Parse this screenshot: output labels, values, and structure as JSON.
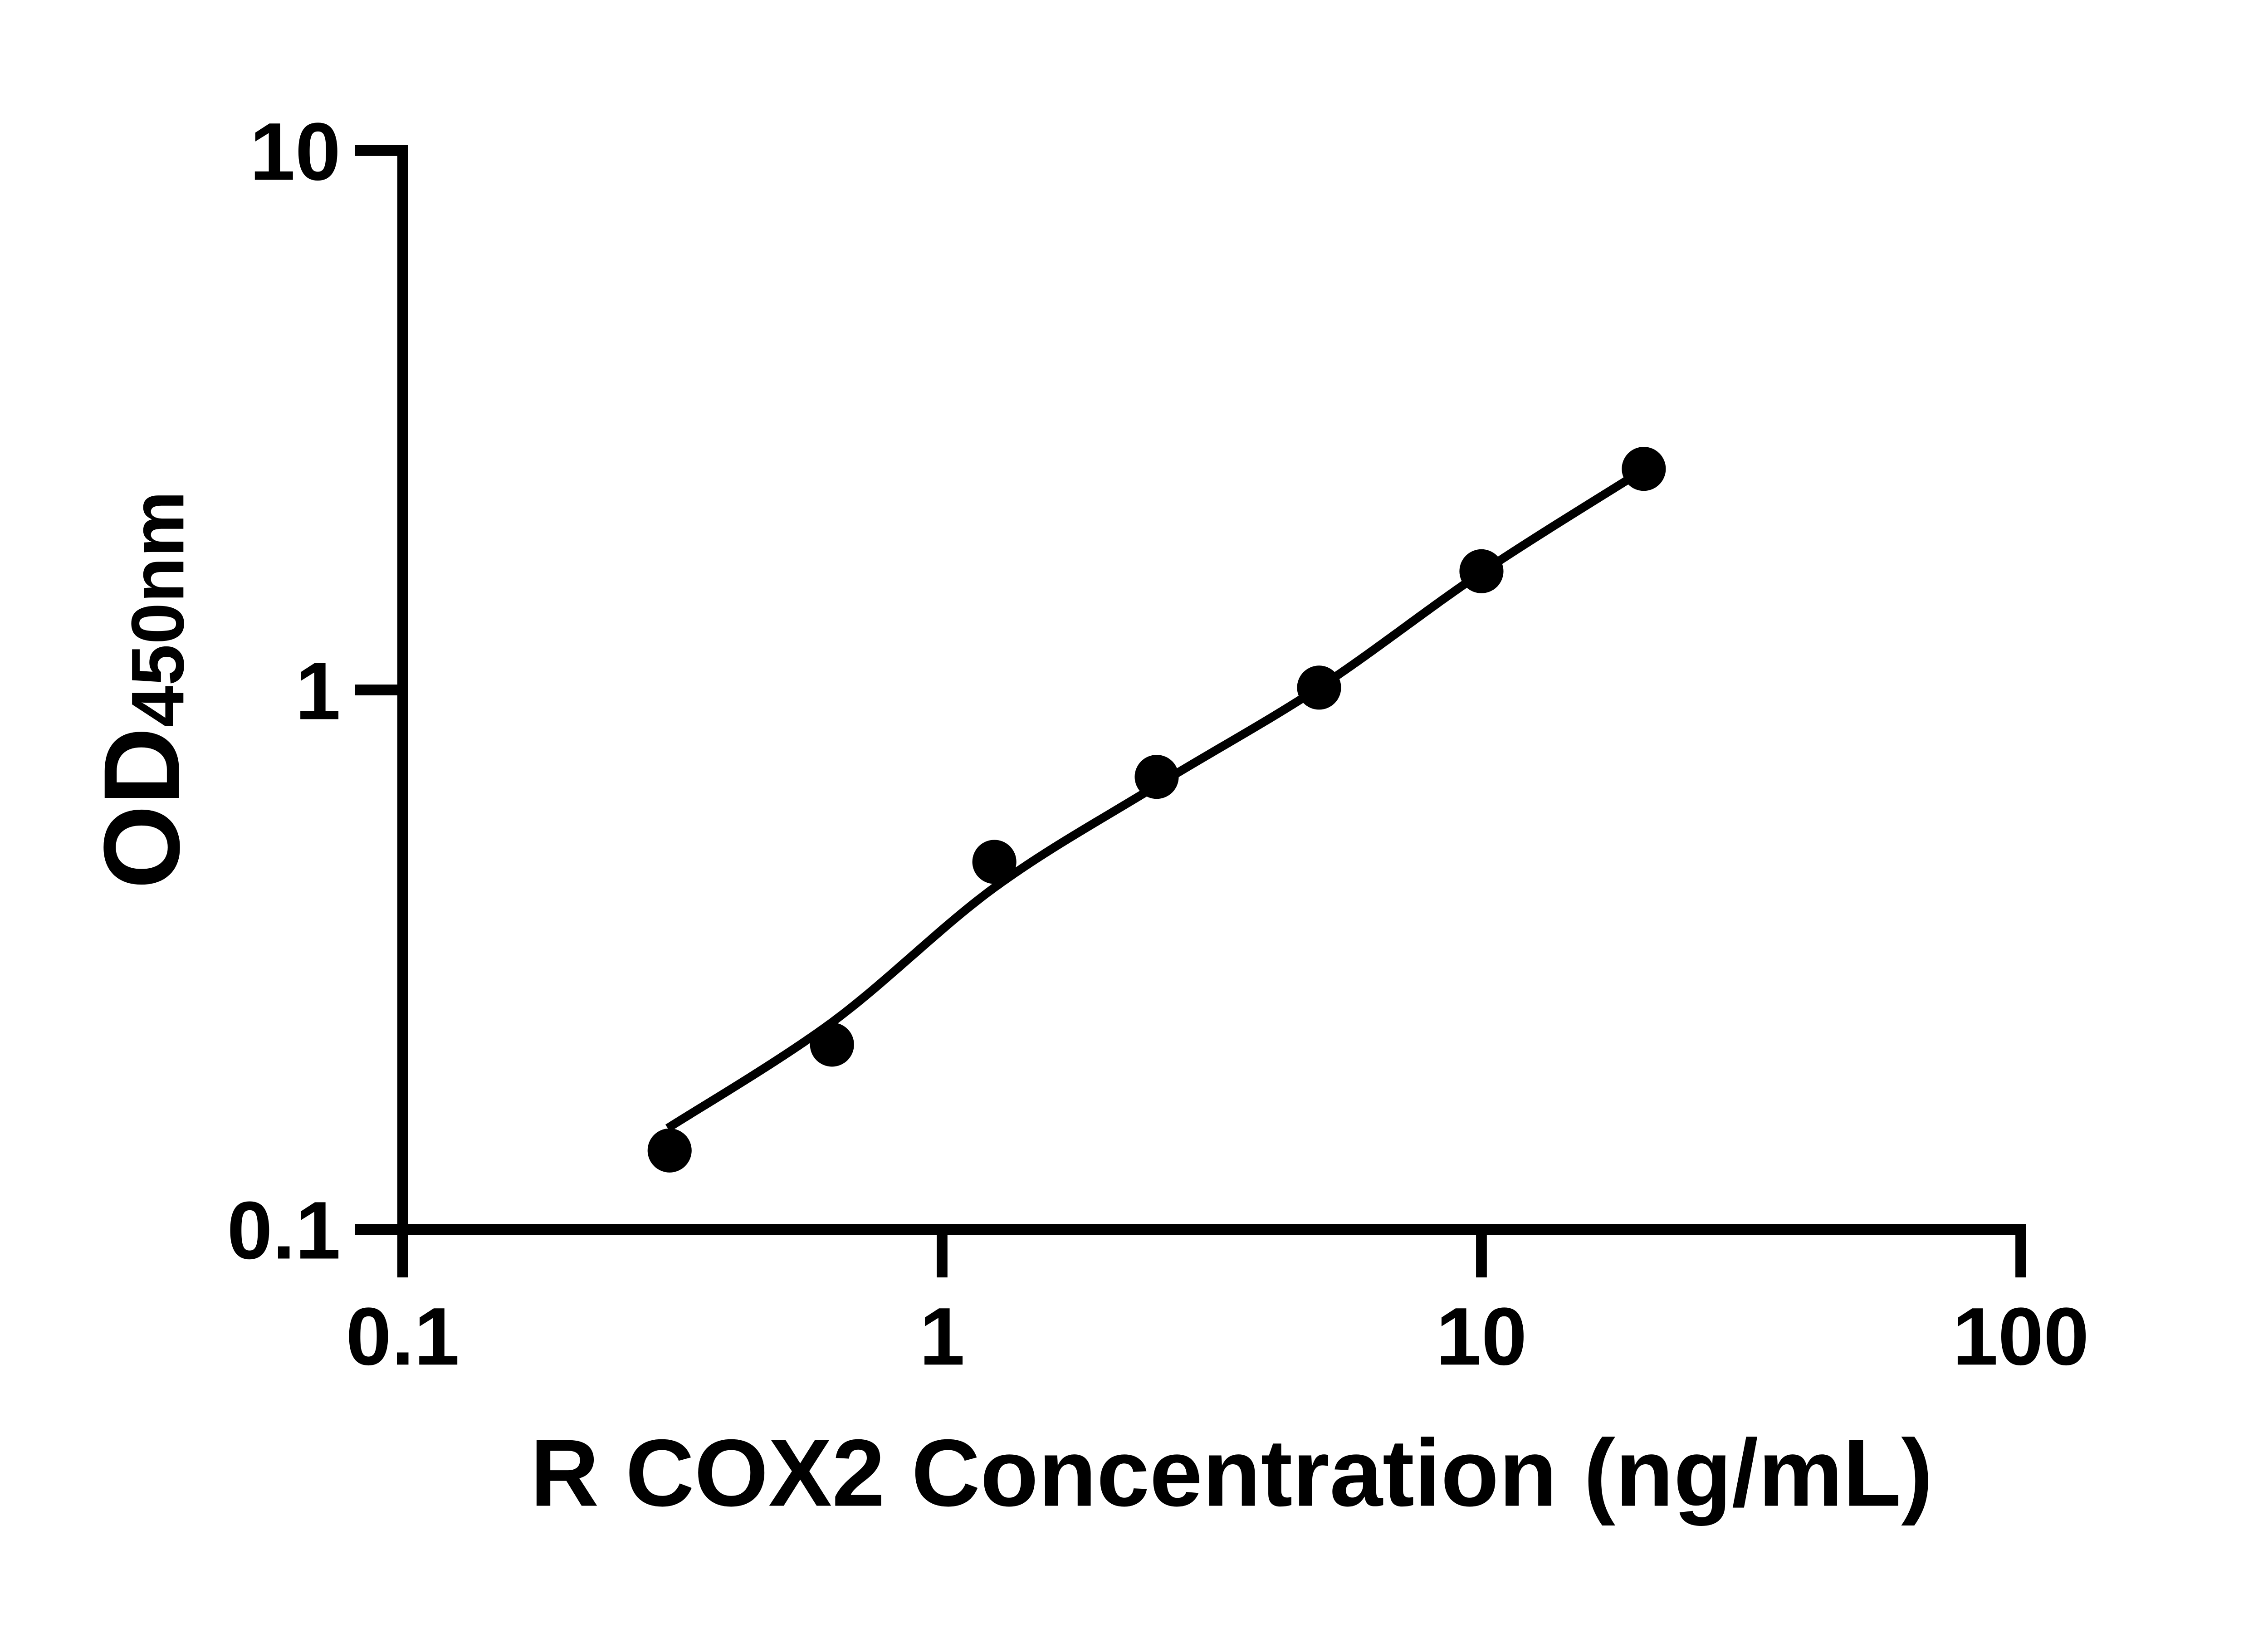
{
  "figure": {
    "background_color": "#ffffff",
    "ink_color": "#000000"
  },
  "chart_data": {
    "type": "scatter",
    "title": "",
    "xlabel": "R COX2 Concentration (ng/mL)",
    "ylabel": "OD",
    "ylabel_sub": "450nm",
    "x_scale": "log",
    "y_scale": "log",
    "xlim": [
      0.1,
      100
    ],
    "ylim": [
      0.1,
      10
    ],
    "grid": false,
    "legend": "none",
    "x_ticks": [
      {
        "value": 0.1,
        "label": "0.1"
      },
      {
        "value": 1,
        "label": "1"
      },
      {
        "value": 10,
        "label": "10"
      },
      {
        "value": 100,
        "label": "100"
      }
    ],
    "y_ticks": [
      {
        "value": 0.1,
        "label": "0.1"
      },
      {
        "value": 1,
        "label": "1"
      },
      {
        "value": 10,
        "label": "10"
      }
    ],
    "series": [
      {
        "name": "standard-points",
        "kind": "scatter",
        "marker": "circle",
        "color": "#000000",
        "points": [
          {
            "x": 0.3125,
            "y": 0.14
          },
          {
            "x": 0.625,
            "y": 0.22
          },
          {
            "x": 1.25,
            "y": 0.48
          },
          {
            "x": 2.5,
            "y": 0.69
          },
          {
            "x": 5,
            "y": 1.01
          },
          {
            "x": 10,
            "y": 1.66
          },
          {
            "x": 20,
            "y": 2.57
          }
        ]
      },
      {
        "name": "fit-curve",
        "kind": "line",
        "color": "#000000",
        "points": [
          {
            "x": 0.31,
            "y": 0.154
          },
          {
            "x": 0.625,
            "y": 0.242
          },
          {
            "x": 1.25,
            "y": 0.43
          },
          {
            "x": 2.5,
            "y": 0.665
          },
          {
            "x": 5,
            "y": 1.01
          },
          {
            "x": 10,
            "y": 1.65
          },
          {
            "x": 20,
            "y": 2.56
          }
        ]
      }
    ]
  }
}
